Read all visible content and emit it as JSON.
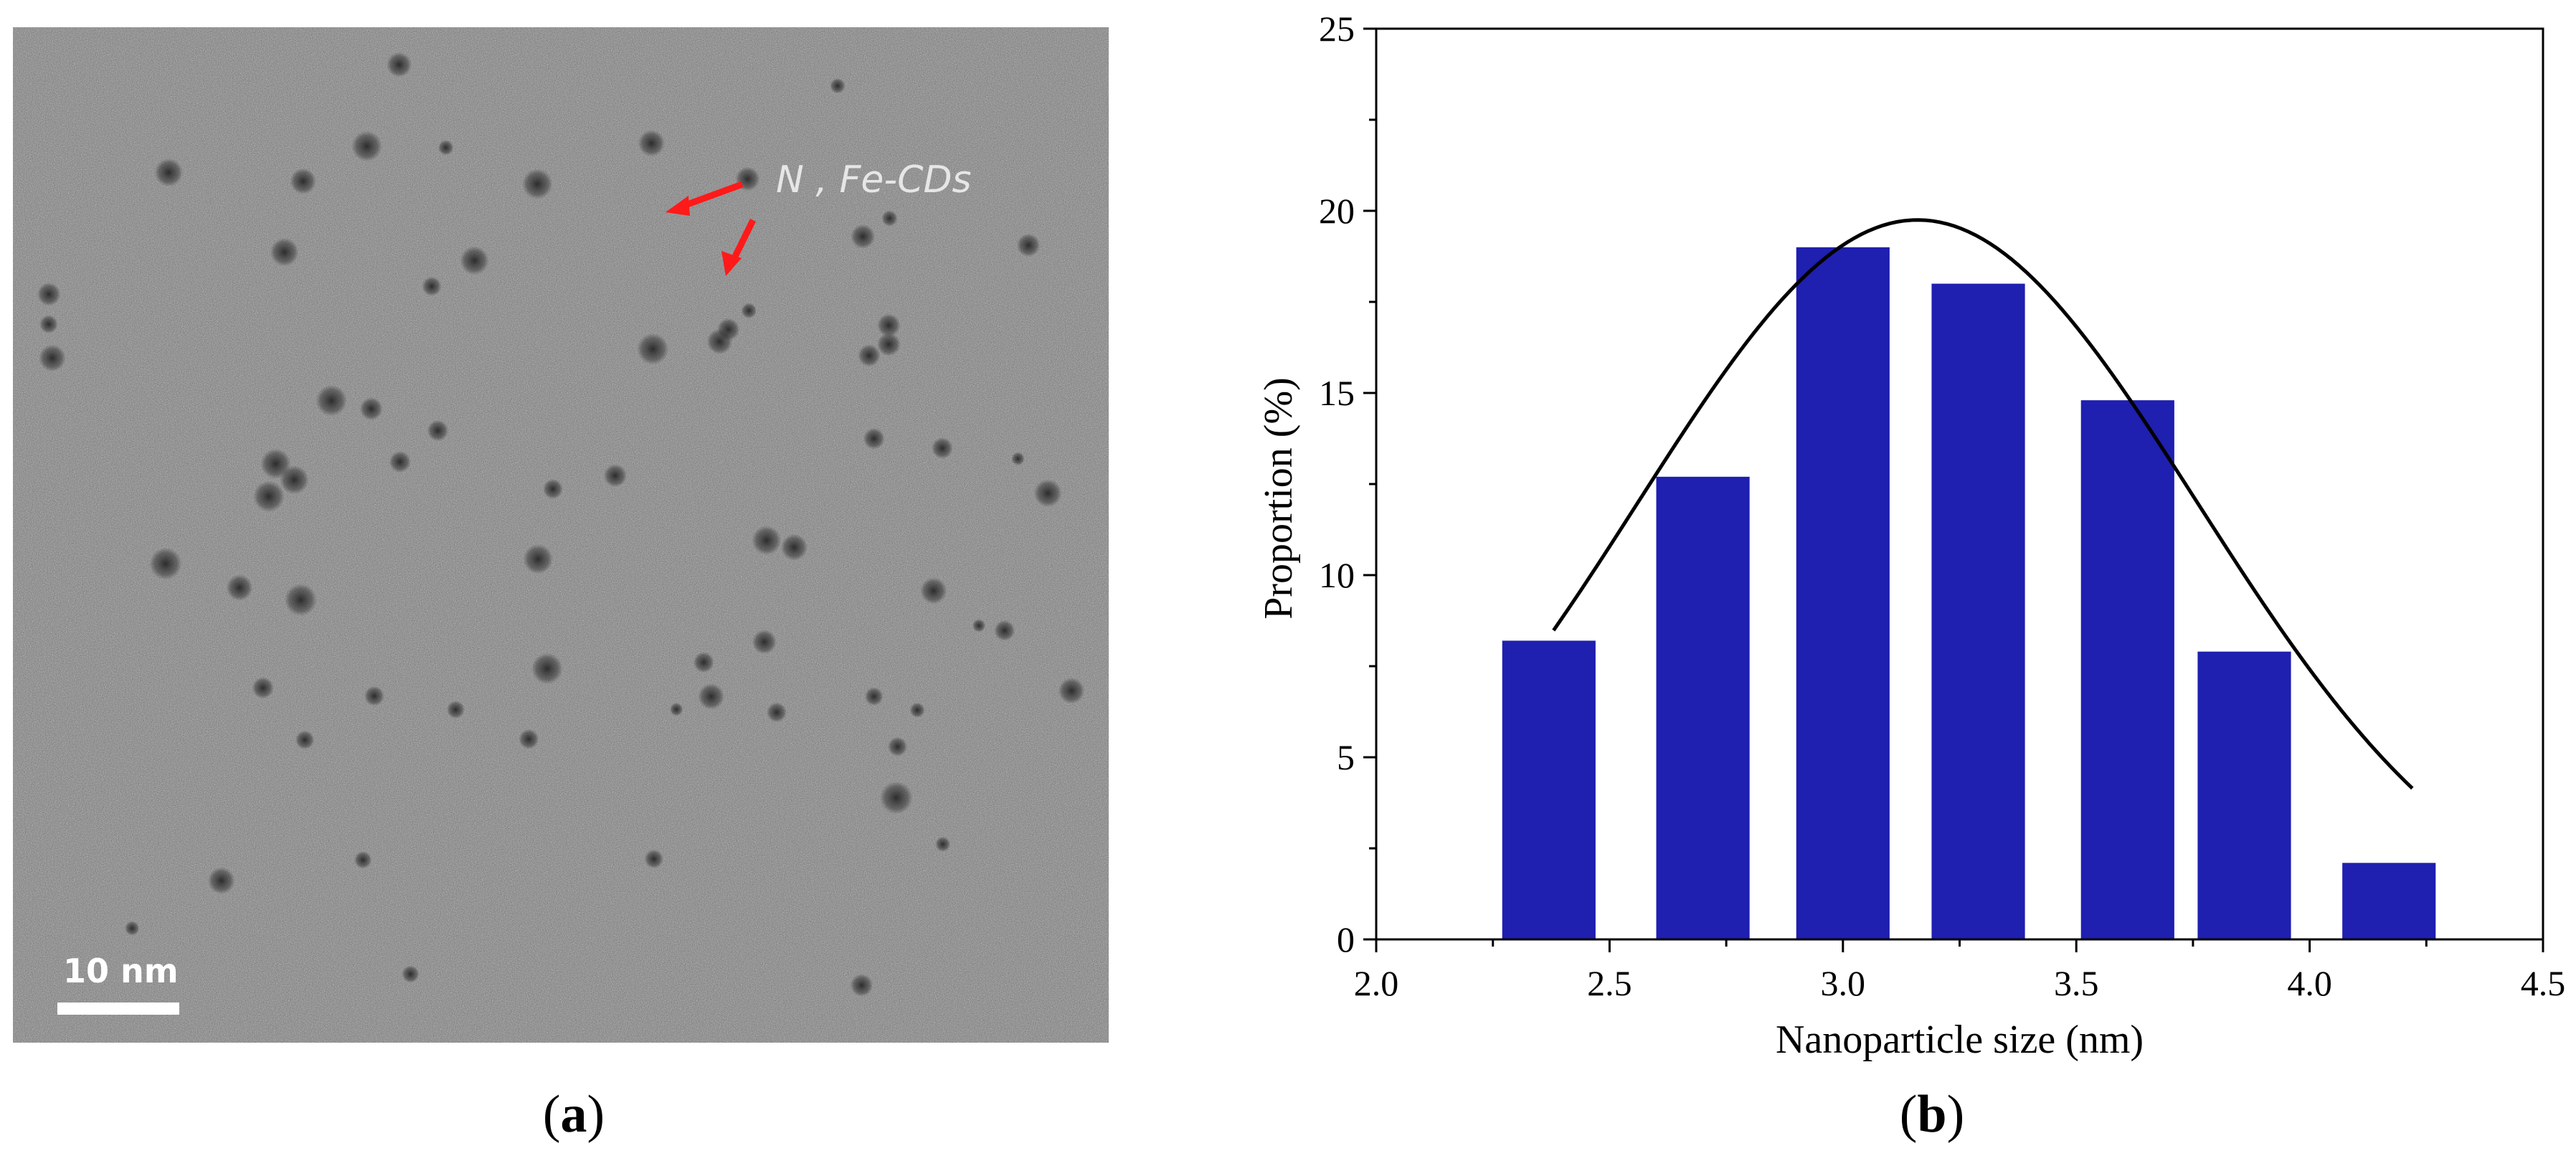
{
  "panel_a": {
    "label": "(a)",
    "label_letter": "a",
    "annotation": "N , Fe-CDs",
    "scalebar_label": "10 nm"
  },
  "panel_b": {
    "label": "(b)",
    "label_letter": "b"
  },
  "colors": {
    "bar": "#1f1fb0",
    "curve": "#000000",
    "arrow": "#ff1a1a"
  },
  "chart_data": {
    "type": "bar",
    "title": "",
    "xlabel": "Nanoparticle size (nm)",
    "ylabel": "Proportion (%)",
    "xlim": [
      2.0,
      4.5
    ],
    "ylim": [
      0,
      25
    ],
    "xticks": [
      "2.0",
      "2.5",
      "3.0",
      "3.5",
      "4.0",
      "4.5"
    ],
    "yticks": [
      "0",
      "5",
      "10",
      "15",
      "20",
      "25"
    ],
    "bars": [
      {
        "left": 2.27,
        "right": 2.47,
        "value": 8.2
      },
      {
        "left": 2.6,
        "right": 2.8,
        "value": 12.7
      },
      {
        "left": 2.9,
        "right": 3.1,
        "value": 19.0
      },
      {
        "left": 3.19,
        "right": 3.39,
        "value": 18.0
      },
      {
        "left": 3.51,
        "right": 3.71,
        "value": 14.8
      },
      {
        "left": 3.76,
        "right": 3.96,
        "value": 7.9
      },
      {
        "left": 4.07,
        "right": 4.27,
        "value": 2.1
      }
    ],
    "fit_curve": {
      "type": "gaussian",
      "x_start": 2.38,
      "x_end": 4.22,
      "peak_x": 3.16,
      "peak_y": 19.75,
      "sigma": 0.6
    }
  }
}
